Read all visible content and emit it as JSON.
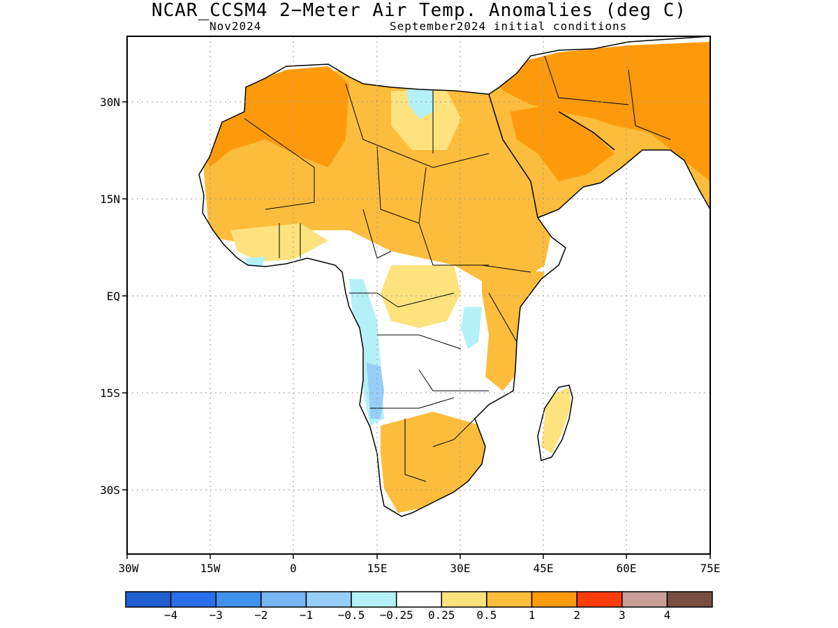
{
  "title": "NCAR_CCSM4 2−Meter Air Temp. Anomalies (deg C)",
  "subtitle_left": "Nov2024",
  "subtitle_right": "September2024 initial conditions",
  "map": {
    "region": "Africa and Arabian Peninsula",
    "lat_labels": [
      "30N",
      "15N",
      "EQ",
      "15S",
      "30S"
    ],
    "lon_labels": [
      "30W",
      "15W",
      "0",
      "15E",
      "30E",
      "45E",
      "60E",
      "75E"
    ],
    "lon_range": [
      -30,
      75
    ],
    "lat_range": [
      -40,
      40
    ],
    "grid": "dotted",
    "anomaly_regions": [
      {
        "area": "Sahara / West Africa",
        "level": "1 to 2"
      },
      {
        "area": "Arabian Peninsula / Middle East",
        "level": "1 to 2"
      },
      {
        "area": "Sahel / Sudan",
        "level": "0.5 to 1"
      },
      {
        "area": "East Africa",
        "level": "0.5 to 1"
      },
      {
        "area": "Southern Africa",
        "level": "0.5 to 1"
      },
      {
        "area": "Central Africa",
        "level": "0.25 to 0.5"
      },
      {
        "area": "Angola / Namibia coast",
        "level": "-1 to -0.25"
      },
      {
        "area": "Great Lakes",
        "level": "-0.5 to -0.25"
      }
    ]
  },
  "colorbar": {
    "colors": [
      "#1f5fcf",
      "#2a6fe8",
      "#4191ee",
      "#78b6f4",
      "#96cef8",
      "#b4f0f8",
      "#ffffff",
      "#fde27e",
      "#fdbd3c",
      "#fd9a0c",
      "#fb3c0c",
      "#c8a096",
      "#784e40"
    ],
    "labels": [
      "−4",
      "−3",
      "−2",
      "−1",
      "−0.5",
      "−0.25",
      "0.25",
      "0.5",
      "1",
      "2",
      "3",
      "4"
    ]
  }
}
